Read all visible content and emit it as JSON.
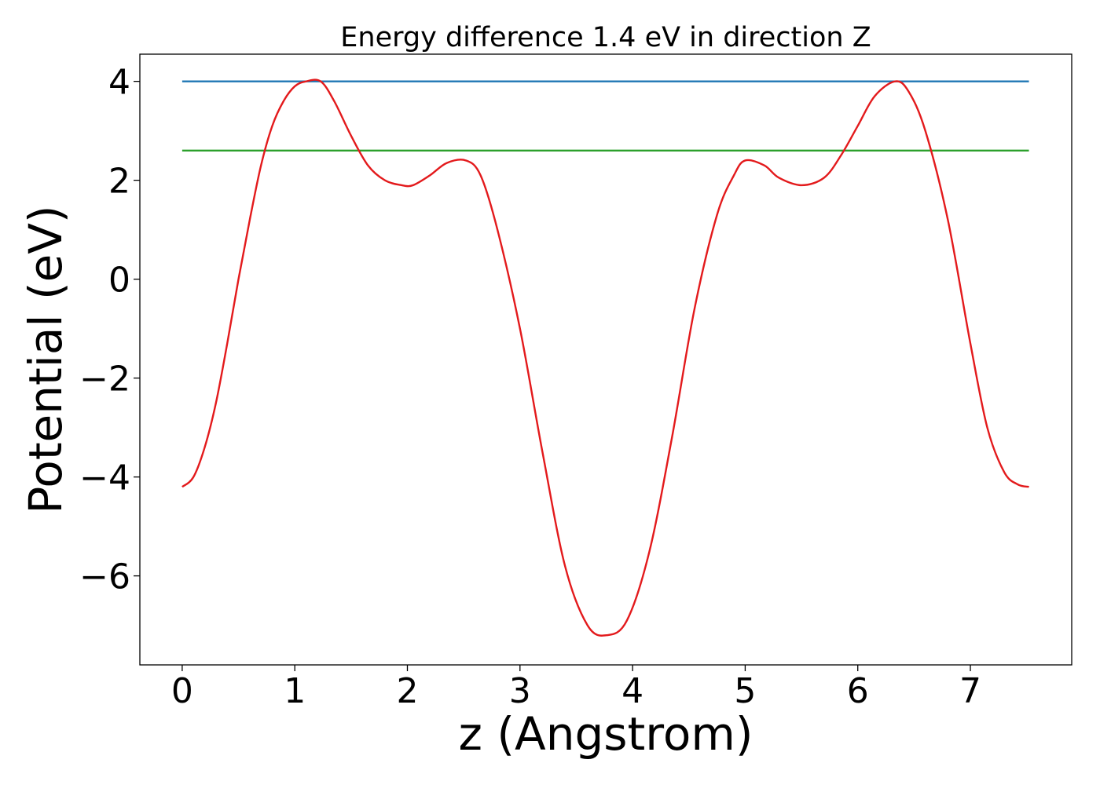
{
  "chart_data": {
    "type": "line",
    "title": "Energy difference 1.4 eV in direction Z",
    "xlabel": "z (Angstrom)",
    "ylabel": "Potential (eV)",
    "xlim": [
      -0.376,
      7.9
    ],
    "ylim": [
      -7.8,
      4.55
    ],
    "xticks": [
      0,
      1,
      2,
      3,
      4,
      5,
      6,
      7
    ],
    "xtick_labels": [
      "0",
      "1",
      "2",
      "3",
      "4",
      "5",
      "6",
      "7"
    ],
    "yticks": [
      4,
      2,
      0,
      -2,
      -4,
      -6
    ],
    "ytick_labels": [
      "4",
      "2",
      "0",
      "−2",
      "−4",
      "−6"
    ],
    "grid": false,
    "legend": "none",
    "series": [
      {
        "color": "#1f77b4",
        "x": [
          0,
          7.52
        ],
        "y": [
          4.0,
          4.0
        ]
      },
      {
        "color": "#2ca02c",
        "x": [
          0,
          7.52
        ],
        "y": [
          2.6,
          2.6
        ]
      },
      {
        "color": "#e31a1c",
        "x": [
          0,
          0.1,
          0.2,
          0.3,
          0.4,
          0.5,
          0.6,
          0.7,
          0.8,
          0.9,
          1.0,
          1.1,
          1.23,
          1.35,
          1.5,
          1.65,
          1.8,
          1.95,
          2.05,
          2.2,
          2.35,
          2.52,
          2.65,
          2.8,
          3.0,
          3.2,
          3.4,
          3.6,
          3.77,
          3.95,
          4.15,
          4.35,
          4.55,
          4.75,
          4.9,
          5.0,
          5.17,
          5.3,
          5.5,
          5.7,
          5.85,
          6.0,
          6.15,
          6.33,
          6.45,
          6.6,
          6.8,
          7.0,
          7.15,
          7.3,
          7.42,
          7.52
        ],
        "y": [
          -4.2,
          -4.0,
          -3.4,
          -2.5,
          -1.3,
          0.0,
          1.2,
          2.3,
          3.1,
          3.6,
          3.9,
          4.0,
          4.0,
          3.6,
          2.9,
          2.3,
          2.0,
          1.9,
          1.9,
          2.1,
          2.35,
          2.4,
          2.1,
          1.0,
          -1.0,
          -3.5,
          -5.8,
          -7.0,
          -7.2,
          -6.9,
          -5.5,
          -3.2,
          -0.6,
          1.3,
          2.1,
          2.4,
          2.3,
          2.05,
          1.9,
          2.05,
          2.5,
          3.1,
          3.7,
          4.0,
          3.8,
          3.0,
          1.2,
          -1.3,
          -3.0,
          -3.9,
          -4.15,
          -4.2
        ]
      }
    ]
  }
}
